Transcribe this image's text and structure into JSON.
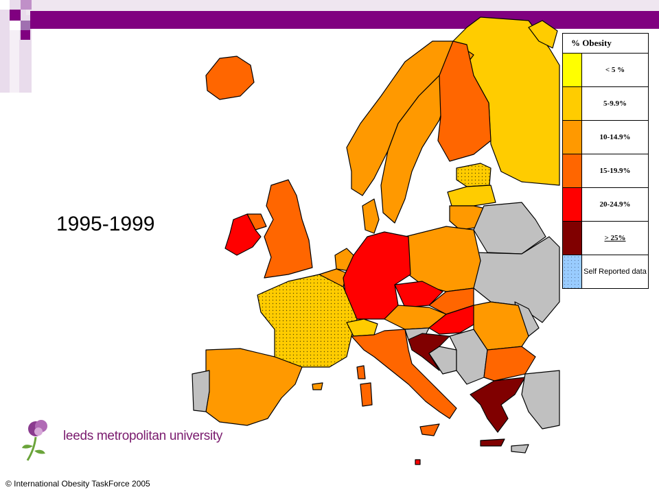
{
  "slide": {
    "period": "1995-1999",
    "credit": "© International Obesity TaskForce 2005",
    "university_logo_text": "leeds metropolitan university"
  },
  "legend": {
    "title": "% Obesity",
    "categories": [
      {
        "label": "< 5 %",
        "color": "#ffff00"
      },
      {
        "label": "5-9.9%",
        "color": "#ffcc00"
      },
      {
        "label": "10-14.9%",
        "color": "#ff9900"
      },
      {
        "label": "15-19.9%",
        "color": "#ff6600"
      },
      {
        "label": "20-24.9%",
        "color": "#ff0000"
      },
      {
        "label": "> 25%",
        "color": "#800000"
      },
      {
        "label": "Self Reported data",
        "color": "#99ccff"
      }
    ]
  },
  "map": {
    "no_data_color": "#c0c0c0",
    "countries": [
      {
        "name": "Iceland",
        "category": "15-19.9%"
      },
      {
        "name": "Ireland",
        "category": "20-24.9%"
      },
      {
        "name": "Northern Ireland",
        "category": "15-19.9%"
      },
      {
        "name": "United Kingdom",
        "category": "15-19.9%"
      },
      {
        "name": "Portugal",
        "category": "no data"
      },
      {
        "name": "Spain",
        "category": "10-14.9%"
      },
      {
        "name": "France",
        "category": "5-9.9%",
        "self_reported": true
      },
      {
        "name": "Belgium",
        "category": "10-14.9%"
      },
      {
        "name": "Netherlands",
        "category": "10-14.9%"
      },
      {
        "name": "Luxembourg",
        "category": "10-14.9%"
      },
      {
        "name": "Germany",
        "category": "20-24.9%"
      },
      {
        "name": "Denmark",
        "category": "10-14.9%"
      },
      {
        "name": "Norway",
        "category": "10-14.9%"
      },
      {
        "name": "Sweden",
        "category": "10-14.9%"
      },
      {
        "name": "Finland",
        "category": "15-19.9%"
      },
      {
        "name": "Russia",
        "category": "5-9.9%"
      },
      {
        "name": "Estonia",
        "category": "5-9.9%",
        "self_reported": true
      },
      {
        "name": "Latvia",
        "category": "5-9.9%"
      },
      {
        "name": "Lithuania",
        "category": "10-14.9%"
      },
      {
        "name": "Poland",
        "category": "10-14.9%"
      },
      {
        "name": "Belarus",
        "category": "no data"
      },
      {
        "name": "Ukraine",
        "category": "no data"
      },
      {
        "name": "Czech Republic",
        "category": "20-24.9%"
      },
      {
        "name": "Slovakia",
        "category": "15-19.9%"
      },
      {
        "name": "Austria",
        "category": "10-14.9%"
      },
      {
        "name": "Switzerland",
        "category": "5-9.9%"
      },
      {
        "name": "Hungary",
        "category": "20-24.9%"
      },
      {
        "name": "Slovenia",
        "category": "no data"
      },
      {
        "name": "Croatia",
        "category": "> 25%"
      },
      {
        "name": "Bosnia",
        "category": "no data"
      },
      {
        "name": "Serbia",
        "category": "no data"
      },
      {
        "name": "Romania",
        "category": "10-14.9%"
      },
      {
        "name": "Moldova",
        "category": "no data"
      },
      {
        "name": "Bulgaria",
        "category": "15-19.9%"
      },
      {
        "name": "Greece",
        "category": "> 25%"
      },
      {
        "name": "Italy",
        "category": "15-19.9%"
      },
      {
        "name": "Turkey",
        "category": "no data"
      }
    ]
  }
}
